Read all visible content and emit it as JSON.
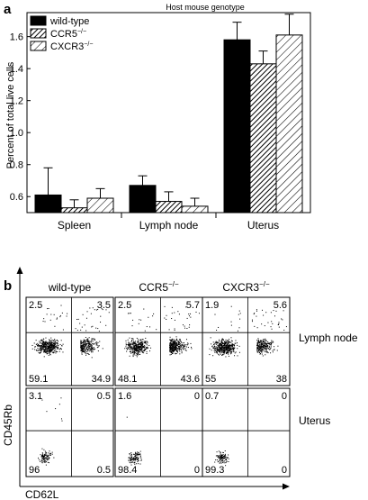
{
  "panel_a_letter": "a",
  "panel_b_letter": "b",
  "chart_data": [
    {
      "type": "bar",
      "title": "Host mouse genotype",
      "ylabel": "Percent of total live cells",
      "xlabel": "",
      "categories": [
        "Spleen",
        "Lymph node",
        "Uterus"
      ],
      "ylim": [
        0.5,
        1.75
      ],
      "yticks": [
        "0.6",
        "0.8",
        "1.0",
        "1.2",
        "1.4",
        "1.6"
      ],
      "legend_position": "top-left",
      "series": [
        {
          "name": "wild-type",
          "name_sup": "",
          "fill": "solid",
          "color": "#000000",
          "values": [
            0.61,
            0.67,
            1.58
          ],
          "errors": [
            0.17,
            0.06,
            0.11
          ]
        },
        {
          "name": "CCR5",
          "name_sup": "−/−",
          "fill": "dense-hatch",
          "color": "#000000",
          "values": [
            0.53,
            0.57,
            1.43
          ],
          "errors": [
            0.05,
            0.06,
            0.08
          ]
        },
        {
          "name": "CXCR3",
          "name_sup": "−/−",
          "fill": "sparse-hatch",
          "color": "#000000",
          "values": [
            0.59,
            0.54,
            1.61
          ],
          "errors": [
            0.06,
            0.05,
            0.13
          ]
        }
      ]
    },
    {
      "type": "scatter",
      "xlabel": "CD62L",
      "ylabel": "CD45Rb",
      "columns": [
        {
          "name": "wild-type",
          "sup": ""
        },
        {
          "name": "CCR5",
          "sup": "−/−"
        },
        {
          "name": "CXCR3",
          "sup": "−/−"
        }
      ],
      "rows": [
        "Lymph node",
        "Uterus"
      ],
      "quadrants": [
        [
          [
            "2.5",
            "3.5",
            "59.1",
            "34.9"
          ],
          [
            "2.5",
            "5.7",
            "48.1",
            "43.6"
          ],
          [
            "1.9",
            "5.6",
            "55",
            "38"
          ]
        ],
        [
          [
            "3.1",
            "0.5",
            "96",
            "0.5"
          ],
          [
            "1.6",
            "0",
            "98.4",
            "0"
          ],
          [
            "0.7",
            "0",
            "99.3",
            "0"
          ]
        ]
      ]
    }
  ]
}
